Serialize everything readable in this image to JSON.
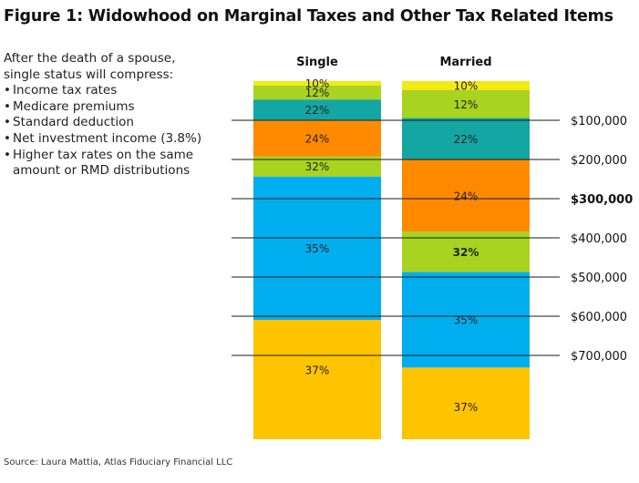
{
  "title": "Figure 1: Widowhood on Marginal Taxes and Other Tax Related Items",
  "notes": {
    "intro": "After the death of a spouse,\nsingle status will compress:",
    "items": [
      "Income tax rates",
      "Medicare premiums",
      "Standard deduction",
      "Net investment income (3.8%)",
      "Higher tax rates on the same amount or RMD distributions"
    ]
  },
  "source": "Source: Laura Mattia, Atlas Fiduciary Financial LLC",
  "chart_data": {
    "type": "bar",
    "stacked": true,
    "orientation": "vertical",
    "x_axis": "none",
    "columns": [
      "Single",
      "Married"
    ],
    "series": [
      {
        "name": "10%",
        "color": "#f4ea13"
      },
      {
        "name": "12%",
        "color": "#a8d320"
      },
      {
        "name": "22%",
        "color": "#14a6a3"
      },
      {
        "name": "24%",
        "color": "#ff8a00"
      },
      {
        "name": "32%",
        "color": "#a8d320"
      },
      {
        "name": "35%",
        "color": "#00aeef"
      },
      {
        "name": "37%",
        "color": "#ffc400"
      }
    ],
    "brackets": {
      "Single": [
        {
          "label": "10%",
          "from": 0,
          "to": 11600
        },
        {
          "label": "12%",
          "from": 11600,
          "to": 47150
        },
        {
          "label": "22%",
          "from": 47150,
          "to": 100525
        },
        {
          "label": "24%",
          "from": 100525,
          "to": 191950
        },
        {
          "label": "32%",
          "from": 191950,
          "to": 243725
        },
        {
          "label": "35%",
          "from": 243725,
          "to": 609350
        },
        {
          "label": "37%",
          "from": 609350,
          "to": 914000
        }
      ],
      "Married": [
        {
          "label": "10%",
          "from": 0,
          "to": 23200
        },
        {
          "label": "12%",
          "from": 23200,
          "to": 94300
        },
        {
          "label": "22%",
          "from": 94300,
          "to": 201050
        },
        {
          "label": "24%",
          "from": 201050,
          "to": 383900
        },
        {
          "label": "32%",
          "from": 383900,
          "to": 487450
        },
        {
          "label": "35%",
          "from": 487450,
          "to": 731200
        },
        {
          "label": "37%",
          "from": 731200,
          "to": 914000
        }
      ]
    },
    "reference_lines": [
      {
        "value": 100000,
        "label": "$100,000",
        "bold": false
      },
      {
        "value": 200000,
        "label": "$200,000",
        "bold": false
      },
      {
        "value": 300000,
        "label": "$300,000",
        "bold": true
      },
      {
        "value": 400000,
        "label": "$400,000",
        "bold": false
      },
      {
        "value": 500000,
        "label": "$500,000",
        "bold": false
      },
      {
        "value": 600000,
        "label": "$600,000",
        "bold": false
      },
      {
        "value": 700000,
        "label": "$700,000",
        "bold": false
      }
    ],
    "ylim": [
      0,
      914000
    ],
    "title": "",
    "xlabel": "",
    "ylabel": "",
    "legend": "none",
    "grid": false
  }
}
